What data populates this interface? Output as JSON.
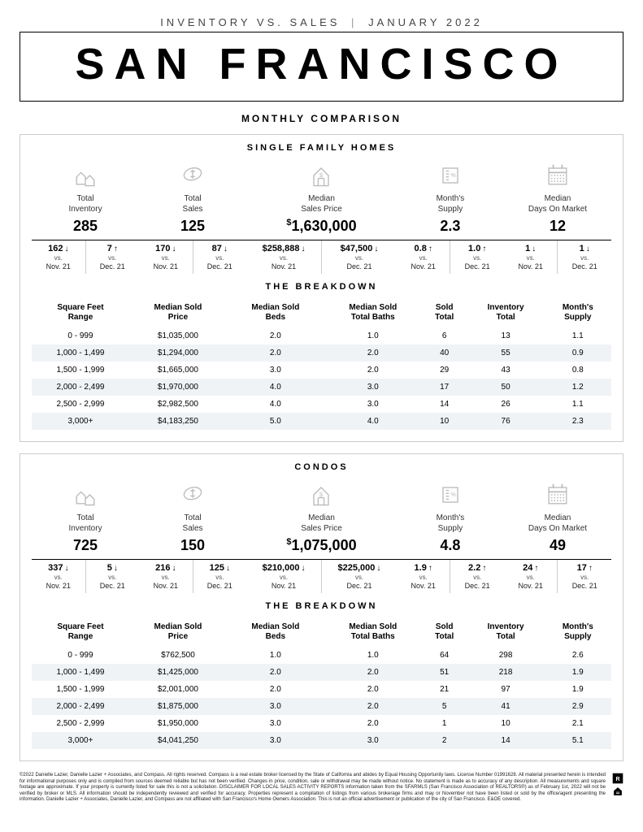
{
  "header": {
    "subtitle_left": "INVENTORY VS. SALES",
    "subtitle_right": "JANUARY 2022",
    "title": "SAN FRANCISCO",
    "section_label": "MONTHLY COMPARISON"
  },
  "stat_labels": {
    "inventory": "Total\nInventory",
    "sales": "Total\nSales",
    "median_price": "Median\nSales Price",
    "supply": "Month's\nSupply",
    "dom": "Median\nDays On Market"
  },
  "compare_labels": {
    "vs": "vs.",
    "nov": "Nov. 21",
    "dec": "Dec. 21"
  },
  "breakdown_headers": {
    "range": "Square Feet\nRange",
    "price": "Median Sold\nPrice",
    "beds": "Median Sold\nBeds",
    "baths": "Median Sold\nTotal Baths",
    "sold": "Sold\nTotal",
    "inventory": "Inventory\nTotal",
    "supply": "Month's\nSupply"
  },
  "breakdown_title": "THE BREAKDOWN",
  "panels": [
    {
      "title": "SINGLE FAMILY HOMES",
      "stats": {
        "inventory": {
          "value": "285",
          "nov": {
            "v": "162",
            "dir": "↓"
          },
          "dec": {
            "v": "7",
            "dir": "↑"
          }
        },
        "sales": {
          "value": "125",
          "nov": {
            "v": "170",
            "dir": "↓"
          },
          "dec": {
            "v": "87",
            "dir": "↓"
          }
        },
        "median_price": {
          "value": "1,630,000",
          "dollar": true,
          "nov": {
            "v": "$258,888",
            "dir": "↓"
          },
          "dec": {
            "v": "$47,500",
            "dir": "↓"
          }
        },
        "supply": {
          "value": "2.3",
          "nov": {
            "v": "0.8",
            "dir": "↑"
          },
          "dec": {
            "v": "1.0",
            "dir": "↑"
          }
        },
        "dom": {
          "value": "12",
          "nov": {
            "v": "1",
            "dir": "↓"
          },
          "dec": {
            "v": "1",
            "dir": "↓"
          }
        }
      },
      "breakdown": [
        {
          "range": "0 - 999",
          "price": "$1,035,000",
          "beds": "2.0",
          "baths": "1.0",
          "sold": "6",
          "inv": "13",
          "supply": "1.1"
        },
        {
          "range": "1,000 - 1,499",
          "price": "$1,294,000",
          "beds": "2.0",
          "baths": "2.0",
          "sold": "40",
          "inv": "55",
          "supply": "0.9"
        },
        {
          "range": "1,500 - 1,999",
          "price": "$1,665,000",
          "beds": "3.0",
          "baths": "2.0",
          "sold": "29",
          "inv": "43",
          "supply": "0.8"
        },
        {
          "range": "2,000 - 2,499",
          "price": "$1,970,000",
          "beds": "4.0",
          "baths": "3.0",
          "sold": "17",
          "inv": "50",
          "supply": "1.2"
        },
        {
          "range": "2,500 - 2,999",
          "price": "$2,982,500",
          "beds": "4.0",
          "baths": "3.0",
          "sold": "14",
          "inv": "26",
          "supply": "1.1"
        },
        {
          "range": "3,000+",
          "price": "$4,183,250",
          "beds": "5.0",
          "baths": "4.0",
          "sold": "10",
          "inv": "76",
          "supply": "2.3"
        }
      ]
    },
    {
      "title": "CONDOS",
      "stats": {
        "inventory": {
          "value": "725",
          "nov": {
            "v": "337",
            "dir": "↓"
          },
          "dec": {
            "v": "5",
            "dir": "↓"
          }
        },
        "sales": {
          "value": "150",
          "nov": {
            "v": "216",
            "dir": "↓"
          },
          "dec": {
            "v": "125",
            "dir": "↓"
          }
        },
        "median_price": {
          "value": "1,075,000",
          "dollar": true,
          "nov": {
            "v": "$210,000",
            "dir": "↓"
          },
          "dec": {
            "v": "$225,000",
            "dir": "↓"
          }
        },
        "supply": {
          "value": "4.8",
          "nov": {
            "v": "1.9",
            "dir": "↑"
          },
          "dec": {
            "v": "2.2",
            "dir": "↑"
          }
        },
        "dom": {
          "value": "49",
          "nov": {
            "v": "24",
            "dir": "↑"
          },
          "dec": {
            "v": "17",
            "dir": "↑"
          }
        }
      },
      "breakdown": [
        {
          "range": "0 - 999",
          "price": "$762,500",
          "beds": "1.0",
          "baths": "1.0",
          "sold": "64",
          "inv": "298",
          "supply": "2.6"
        },
        {
          "range": "1,000 - 1,499",
          "price": "$1,425,000",
          "beds": "2.0",
          "baths": "2.0",
          "sold": "51",
          "inv": "218",
          "supply": "1.9"
        },
        {
          "range": "1,500 - 1,999",
          "price": "$2,001,000",
          "beds": "2.0",
          "baths": "2.0",
          "sold": "21",
          "inv": "97",
          "supply": "1.9"
        },
        {
          "range": "2,000 - 2,499",
          "price": "$1,875,000",
          "beds": "3.0",
          "baths": "2.0",
          "sold": "5",
          "inv": "41",
          "supply": "2.9"
        },
        {
          "range": "2,500 - 2,999",
          "price": "$1,950,000",
          "beds": "3.0",
          "baths": "2.0",
          "sold": "1",
          "inv": "10",
          "supply": "2.1"
        },
        {
          "range": "3,000+",
          "price": "$4,041,250",
          "beds": "3.0",
          "baths": "3.0",
          "sold": "2",
          "inv": "14",
          "supply": "5.1"
        }
      ]
    }
  ],
  "footer": "©2022 Danielle Lazier, Danielle Lazier + Associates, and Compass. All rights reserved. Compass is a real estate broker licensed by the State of California and abides by Equal Housing Opportunity laws. License Number 01991628. All material presented herein is intended for informational purposes only and is compiled from sources deemed reliable but has not been verified. Changes in price, condition, sale or withdrawal may be made without notice. No statement is made as to accuracy of any description. All measurements and square footage are approximate. If your property is currently listed for sale this is not a solicitation. DISCLAIMER FOR LOCAL SALES ACTIVITY REPORTS information taken from the SFARMLS (San Francisco Association of REALTORS®) as of February 1st, 2022 will not be verified by broker or MLS. All information should be independently reviewed and verified for accuracy. Properties represent a compilation of listings from various brokerage firms and may or November not have been listed or sold by the office/agent presenting the information. Danielle Lazier + Associates, Danielle Lazier, and Compass are not affiliated with San Francisco's Home Owners Association. This is not an official advertisement or publication of the city of San Francisco. E&OE covered.",
  "colors": {
    "panel_border": "#cccccc",
    "icon": "#bbbbbb",
    "row_alt": "#f0f3f6"
  }
}
